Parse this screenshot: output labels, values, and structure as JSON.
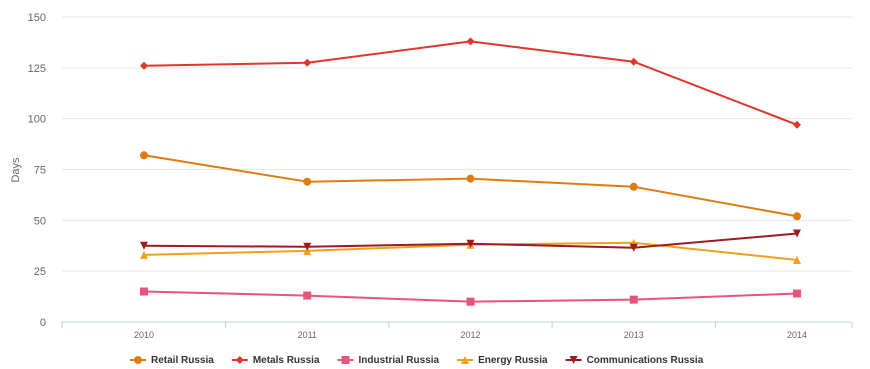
{
  "chart_data": {
    "type": "line",
    "title": "",
    "xlabel": "",
    "ylabel": "Days",
    "categories": [
      "2010",
      "2011",
      "2012",
      "2013",
      "2014"
    ],
    "yticks": [
      "0",
      "25",
      "50",
      "75",
      "100",
      "125",
      "150"
    ],
    "ylim": [
      0,
      150
    ],
    "grid": true,
    "legend_position": "bottom-center",
    "series": [
      {
        "name": "Retail Russia",
        "color": "#e07b12",
        "marker": "circle",
        "values": [
          82,
          69,
          70.5,
          66.5,
          52
        ]
      },
      {
        "name": "Metals Russia",
        "color": "#e0362e",
        "marker": "diamond",
        "values": [
          126,
          127.5,
          138,
          128,
          97
        ]
      },
      {
        "name": "Industrial Russia",
        "color": "#e5577a",
        "marker": "square",
        "values": [
          15,
          13,
          10,
          11,
          14
        ]
      },
      {
        "name": "Energy Russia",
        "color": "#f0a11c",
        "marker": "triangle",
        "values": [
          33,
          35,
          38,
          39,
          30.5
        ]
      },
      {
        "name": "Communications Russia",
        "color": "#9b1c20",
        "marker": "triangle-down",
        "values": [
          37.5,
          37,
          38.5,
          36.5,
          43.5
        ]
      }
    ]
  }
}
